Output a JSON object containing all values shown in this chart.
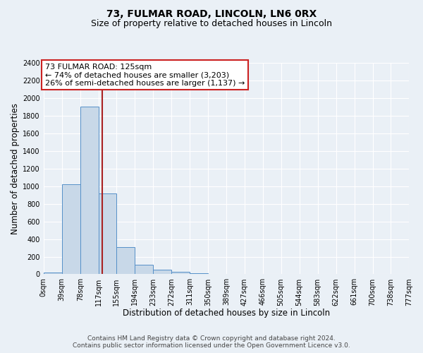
{
  "title1": "73, FULMAR ROAD, LINCOLN, LN6 0RX",
  "title2": "Size of property relative to detached houses in Lincoln",
  "xlabel": "Distribution of detached houses by size in Lincoln",
  "ylabel": "Number of detached properties",
  "bin_edges": [
    0,
    39,
    78,
    117,
    155,
    194,
    233,
    272,
    311,
    350,
    389,
    427,
    466,
    505,
    544,
    583,
    622,
    661,
    700,
    738,
    777
  ],
  "bin_labels": [
    "0sqm",
    "39sqm",
    "78sqm",
    "117sqm",
    "155sqm",
    "194sqm",
    "233sqm",
    "272sqm",
    "311sqm",
    "350sqm",
    "389sqm",
    "427sqm",
    "466sqm",
    "505sqm",
    "544sqm",
    "583sqm",
    "622sqm",
    "661sqm",
    "700sqm",
    "738sqm",
    "777sqm"
  ],
  "counts": [
    20,
    1020,
    1900,
    920,
    310,
    110,
    55,
    30,
    10,
    0,
    0,
    0,
    0,
    0,
    0,
    0,
    0,
    0,
    0,
    0
  ],
  "bar_color": "#c8d8e8",
  "bar_edge_color": "#5590c8",
  "vline_x": 125,
  "vline_color": "#aa2222",
  "ylim": [
    0,
    2400
  ],
  "yticks": [
    0,
    200,
    400,
    600,
    800,
    1000,
    1200,
    1400,
    1600,
    1800,
    2000,
    2200,
    2400
  ],
  "annotation_title": "73 FULMAR ROAD: 125sqm",
  "annotation_line1": "← 74% of detached houses are smaller (3,203)",
  "annotation_line2": "26% of semi-detached houses are larger (1,137) →",
  "annotation_box_edge": "#cc2222",
  "footer1": "Contains HM Land Registry data © Crown copyright and database right 2024.",
  "footer2": "Contains public sector information licensed under the Open Government Licence v3.0.",
  "bg_color": "#eaf0f6",
  "plot_bg_color": "#eaf0f6",
  "grid_color": "#ffffff",
  "title_fontsize": 10,
  "subtitle_fontsize": 9,
  "label_fontsize": 8.5,
  "tick_fontsize": 7,
  "annotation_fontsize": 8,
  "footer_fontsize": 6.5
}
